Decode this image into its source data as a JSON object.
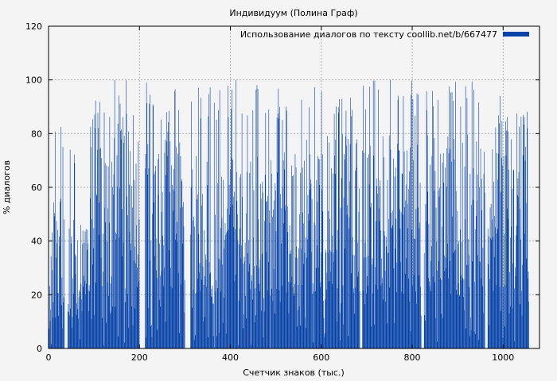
{
  "chart_data": {
    "type": "bar",
    "title": "Индивидуум (Полина Граф)",
    "xlabel": "Счетчик знаков (тыс.)",
    "ylabel": "% диалогов",
    "xlim": [
      0,
      1080
    ],
    "ylim": [
      0,
      120
    ],
    "x_ticks": [
      0,
      200,
      400,
      600,
      800,
      1000
    ],
    "y_ticks": [
      0,
      20,
      40,
      60,
      80,
      100,
      120
    ],
    "grid": true,
    "legend_position": "top-right",
    "series": [
      {
        "name": "Использование диалогов по тексту coollib.net/b/667477",
        "color": "#0642a8",
        "x_start": 0,
        "x_end": 1057,
        "gaps": [
          [
            38,
            42
          ],
          [
            200,
            212
          ],
          [
            308,
            312
          ],
          [
            685,
            690
          ],
          [
            820,
            826
          ],
          [
            960,
            966
          ]
        ],
        "segments": [
          {
            "from": 0,
            "to": 35,
            "typical": 35,
            "max": 86
          },
          {
            "from": 42,
            "to": 90,
            "typical": 30,
            "max": 80
          },
          {
            "from": 90,
            "to": 200,
            "typical": 55,
            "max": 100
          },
          {
            "from": 212,
            "to": 300,
            "typical": 55,
            "max": 100
          },
          {
            "from": 312,
            "to": 500,
            "typical": 45,
            "max": 100
          },
          {
            "from": 500,
            "to": 685,
            "typical": 50,
            "max": 100
          },
          {
            "from": 690,
            "to": 820,
            "typical": 50,
            "max": 100
          },
          {
            "from": 826,
            "to": 960,
            "typical": 50,
            "max": 100
          },
          {
            "from": 966,
            "to": 1057,
            "typical": 55,
            "max": 100
          }
        ]
      }
    ]
  }
}
